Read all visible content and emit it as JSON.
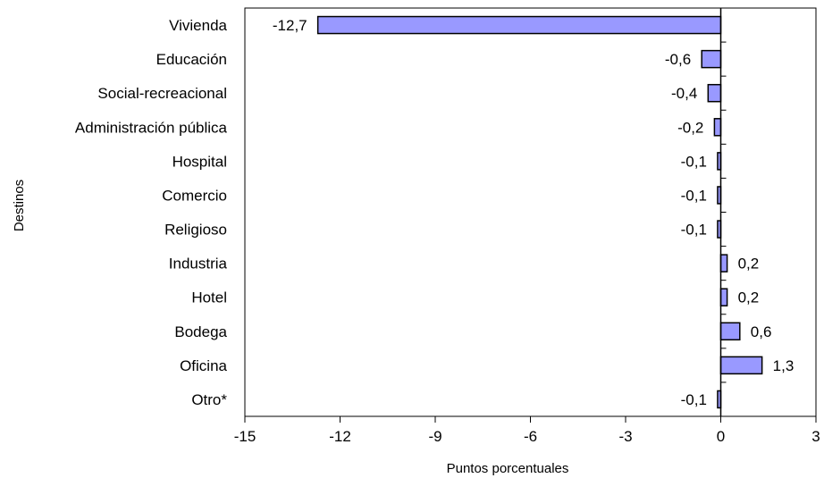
{
  "chart_data": {
    "type": "bar",
    "orientation": "horizontal",
    "categories": [
      "Vivienda",
      "Educación",
      "Social-recreacional",
      "Administración pública",
      "Hospital",
      "Comercio",
      "Religioso",
      "Industria",
      "Hotel",
      "Bodega",
      "Oficina",
      "Otro*"
    ],
    "values": [
      -12.7,
      -0.6,
      -0.4,
      -0.2,
      -0.1,
      -0.1,
      -0.1,
      0.2,
      0.2,
      0.6,
      1.3,
      -0.1
    ],
    "value_labels": [
      "-12,7",
      "-0,6",
      "-0,4",
      "-0,2",
      "-0,1",
      "-0,1",
      "-0,1",
      "0,2",
      "0,2",
      "0,6",
      "1,3",
      "-0,1"
    ],
    "xlabel": "Puntos porcentuales",
    "ylabel": "Destinos",
    "xlim": [
      -15,
      3
    ],
    "x_ticks": [
      -15,
      -12,
      -9,
      -6,
      -3,
      0,
      3
    ],
    "x_tick_labels": [
      "-15",
      "-12",
      "-9",
      "-6",
      "-3",
      "0",
      "3"
    ],
    "grid": false,
    "legend": "none",
    "bar_color": "#9999ff",
    "bar_edge_color": "#000000"
  }
}
